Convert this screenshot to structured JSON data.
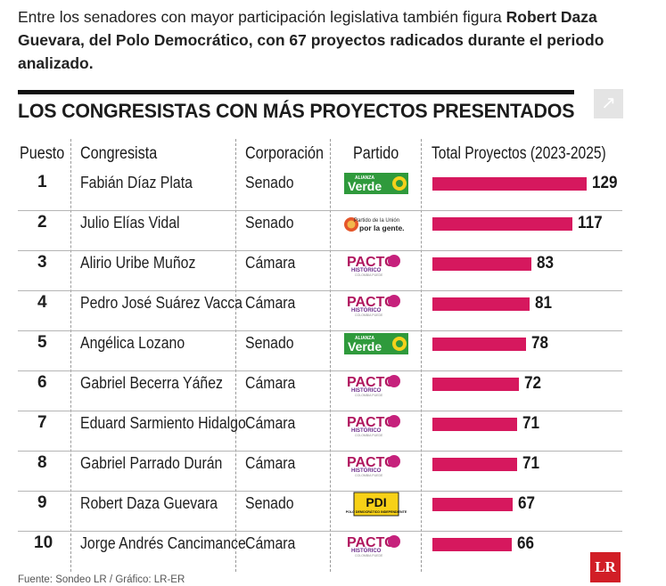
{
  "intro": {
    "lead": "Entre los senadores con mayor participación legislativa también figura ",
    "bold": "Robert Daza Guevara, del Polo Democrático, con 67 proyectos radicados durante el periodo analizado."
  },
  "expand_icon": "expand-arrow-icon",
  "chart_data": {
    "type": "bar",
    "title": "LOS CONGRESISTAS CON MÁS PROYECTOS PRESENTADOS",
    "columns": [
      "Puesto",
      "Congresista",
      "Corporación",
      "Partido",
      "Total Proyectos  (2023-2025)"
    ],
    "orientation": "horizontal",
    "bar_color": "#d6185e",
    "xlim": [
      0,
      129
    ],
    "rows": [
      {
        "rank": "1",
        "name": "Fabián Díaz Plata",
        "corp": "Senado",
        "party": "Alianza Verde",
        "value": 129
      },
      {
        "rank": "2",
        "name": "Julio Elías Vidal",
        "corp": "Senado",
        "party": "Partido de la U",
        "value": 117
      },
      {
        "rank": "3",
        "name": "Alirio Uribe Muñoz",
        "corp": "Cámara",
        "party": "Pacto Histórico",
        "value": 83
      },
      {
        "rank": "4",
        "name": "Pedro José Suárez Vacca",
        "corp": "Cámara",
        "party": "Pacto Histórico",
        "value": 81
      },
      {
        "rank": "5",
        "name": "Angélica Lozano",
        "corp": "Senado",
        "party": "Alianza Verde",
        "value": 78
      },
      {
        "rank": "6",
        "name": "Gabriel Becerra Yáñez",
        "corp": "Cámara",
        "party": "Pacto Histórico",
        "value": 72
      },
      {
        "rank": "7",
        "name": "Eduard Sarmiento Hidalgo",
        "corp": "Cámara",
        "party": "Pacto Histórico",
        "value": 71
      },
      {
        "rank": "8",
        "name": "Gabriel Parrado Durán",
        "corp": "Cámara",
        "party": "Pacto Histórico",
        "value": 71
      },
      {
        "rank": "9",
        "name": "Robert Daza Guevara",
        "corp": "Senado",
        "party": "PDI",
        "value": 67
      },
      {
        "rank": "10",
        "name": "Jorge Andrés Cancimance",
        "corp": "Cámara",
        "party": "Pacto Histórico",
        "value": 66
      }
    ]
  },
  "logos": {
    "verde": {
      "small": "ALIANZA",
      "big": "Verde",
      "color": "#2f9a3c"
    },
    "laU": {
      "line1": "Partido de la ",
      "line1b": "Unión",
      "line2": "por la gente."
    },
    "pacto": {
      "big": "PACTO",
      "small": "HISTÓRICO",
      "tiny": "COLOMBIA PUEDE"
    },
    "pdi": {
      "big": "PDI",
      "small": "POLO DEMOCRÁTICO INDEPENDIENTE"
    }
  },
  "source": "Fuente: Sondeo LR / Gráfico: LR-ER",
  "brand": "LR"
}
